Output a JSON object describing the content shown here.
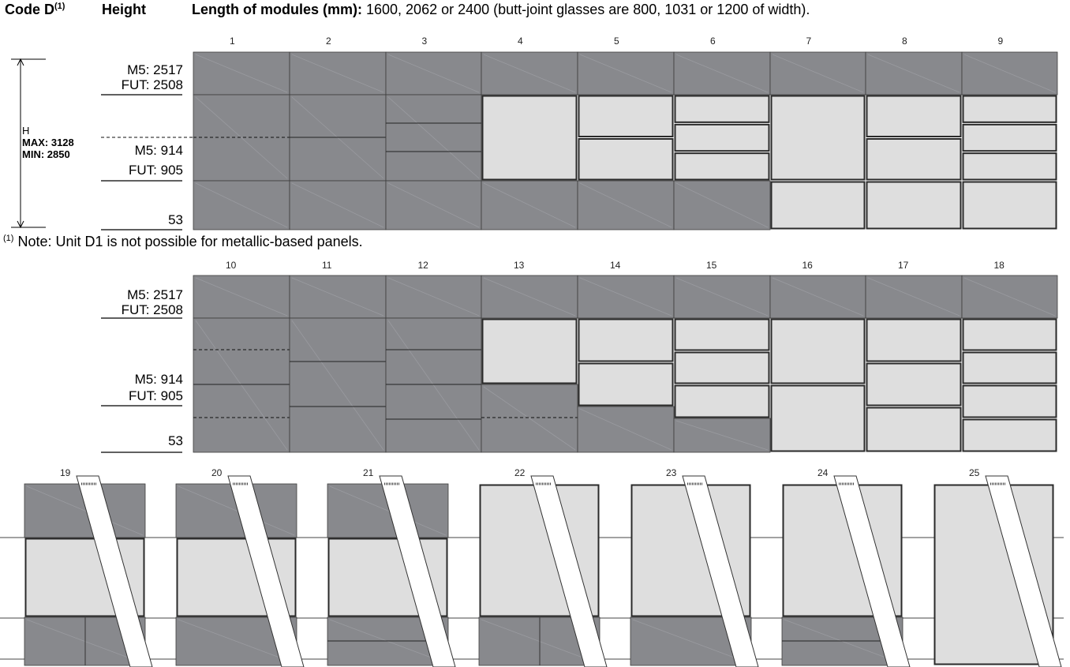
{
  "header": {
    "code_label": "Code D",
    "code_sup": "(1)",
    "height_label": "Height",
    "length_title": "Length of modules (mm):",
    "length_desc": "1600, 2062 or 2400 (butt-joint glasses are 800, 1031 or 1200 of width)."
  },
  "dimension": {
    "h": "H",
    "max_label": "MAX:",
    "max_value": "3128",
    "min_label": "MIN:",
    "min_value": "2850"
  },
  "rows": {
    "top_m5": "M5: 2517",
    "top_fut": "FUT: 2508",
    "mid_m5": "M5: 914",
    "mid_fut": "FUT: 905",
    "bottom": "53"
  },
  "note": {
    "sup": "(1)",
    "text": "Note: Unit D1 is not possible for metallic-based panels."
  },
  "colors": {
    "opaque_panel": "#88898d",
    "glass_panel": "#dedede",
    "frame": "#2a2a2a"
  },
  "modules": {
    "row1": [
      "1",
      "2",
      "3",
      "4",
      "5",
      "6",
      "7",
      "8",
      "9"
    ],
    "row2": [
      "10",
      "11",
      "12",
      "13",
      "14",
      "15",
      "16",
      "17",
      "18"
    ],
    "row3": [
      "19",
      "20",
      "21",
      "22",
      "23",
      "24",
      "25"
    ]
  }
}
